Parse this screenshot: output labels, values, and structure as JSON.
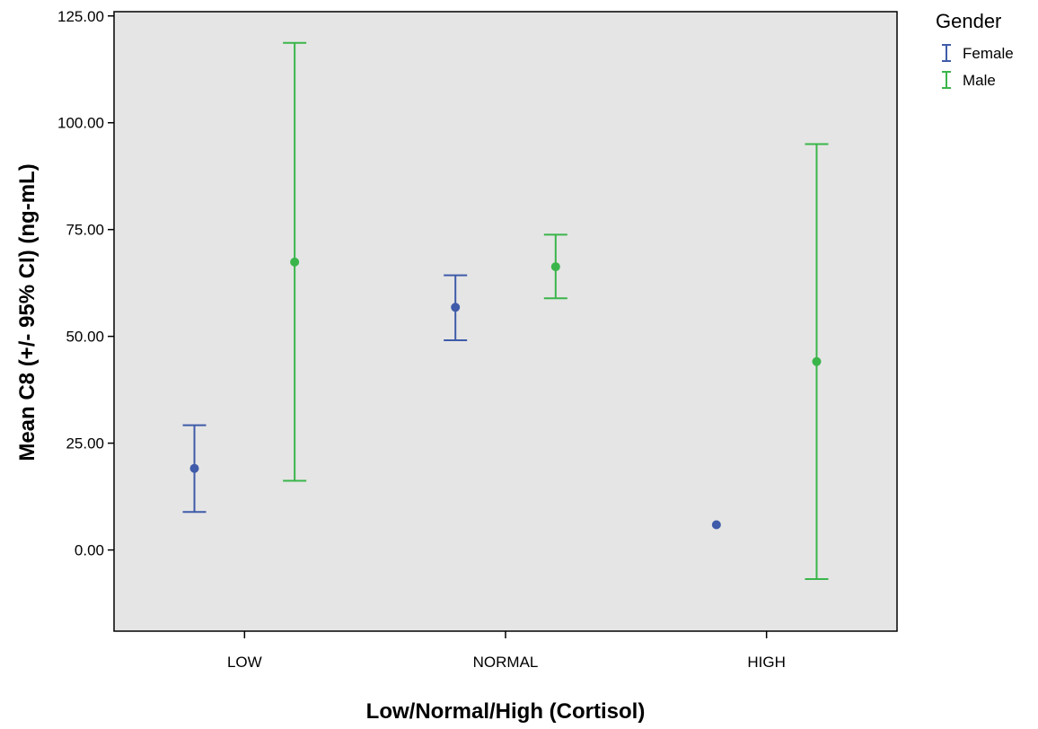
{
  "chart_data": {
    "type": "scatter",
    "subtype": "error-bar",
    "title": "",
    "xlabel": "Low/Normal/High (Cortisol)",
    "ylabel": "Mean C8 (+/- 95% CI) (ng-mL)",
    "categories": [
      "LOW",
      "NORMAL",
      "HIGH"
    ],
    "ylim": [
      -19,
      126
    ],
    "yticks": [
      0,
      25,
      50,
      75,
      100,
      125
    ],
    "ytick_labels": [
      "0.00",
      "25.00",
      "50.00",
      "75.00",
      "100.00",
      "125.00"
    ],
    "grid": false,
    "plot_background": "#e5e5e5",
    "legend": {
      "title": "Gender",
      "position": "top-right-outside"
    },
    "series": [
      {
        "name": "Female",
        "color": "#3f5ba9",
        "means": [
          19.1,
          56.8,
          5.9
        ],
        "lower": [
          8.9,
          49.1,
          null
        ],
        "upper": [
          29.2,
          64.3,
          null
        ]
      },
      {
        "name": "Male",
        "color": "#3ab54a",
        "means": [
          67.4,
          66.3,
          44.1
        ],
        "lower": [
          16.2,
          58.9,
          -6.8
        ],
        "upper": [
          118.7,
          73.8,
          95.0
        ]
      }
    ]
  }
}
